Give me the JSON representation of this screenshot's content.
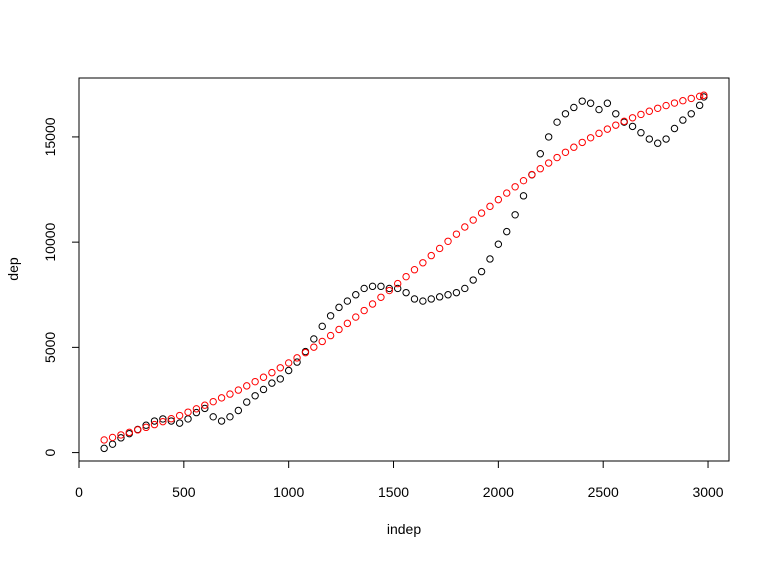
{
  "chart_data": {
    "type": "scatter",
    "title": "",
    "xlabel": "indep",
    "ylabel": "dep",
    "xlim": [
      0,
      3100
    ],
    "ylim": [
      -400,
      17800
    ],
    "x_ticks": [
      0,
      500,
      1000,
      1500,
      2000,
      2500,
      3000
    ],
    "y_ticks": [
      0,
      5000,
      10000,
      15000
    ],
    "grid": false,
    "legend": "none",
    "series": [
      {
        "color": "#000000",
        "marker": "open-circle",
        "x": [
          120,
          160,
          200,
          240,
          280,
          320,
          360,
          400,
          440,
          480,
          520,
          560,
          600,
          640,
          680,
          720,
          760,
          800,
          840,
          880,
          920,
          960,
          1000,
          1040,
          1080,
          1120,
          1160,
          1200,
          1240,
          1280,
          1320,
          1360,
          1400,
          1440,
          1480,
          1520,
          1560,
          1600,
          1640,
          1680,
          1720,
          1760,
          1800,
          1840,
          1880,
          1920,
          1960,
          2000,
          2040,
          2080,
          2120,
          2160,
          2200,
          2240,
          2280,
          2320,
          2360,
          2400,
          2440,
          2480,
          2520,
          2560,
          2600,
          2640,
          2680,
          2720,
          2760,
          2800,
          2840,
          2880,
          2920,
          2960,
          2980
        ],
        "y": [
          200,
          400,
          700,
          900,
          1100,
          1300,
          1500,
          1600,
          1500,
          1400,
          1600,
          1900,
          2100,
          1700,
          1500,
          1700,
          2000,
          2400,
          2700,
          3000,
          3300,
          3500,
          3900,
          4300,
          4800,
          5400,
          6000,
          6500,
          6900,
          7200,
          7500,
          7800,
          7900,
          7900,
          7800,
          7800,
          7600,
          7300,
          7200,
          7300,
          7400,
          7500,
          7600,
          7800,
          8200,
          8600,
          9200,
          9900,
          10500,
          11300,
          12200,
          13200,
          14200,
          15000,
          15700,
          16100,
          16400,
          16700,
          16600,
          16300,
          16600,
          16100,
          15700,
          15500,
          15200,
          14900,
          14700,
          14900,
          15400,
          15800,
          16100,
          16500,
          16900
        ]
      },
      {
        "color": "#ff0000",
        "marker": "open-circle",
        "x": [
          120,
          160,
          200,
          240,
          280,
          320,
          360,
          400,
          440,
          480,
          520,
          560,
          600,
          640,
          680,
          720,
          760,
          800,
          840,
          880,
          920,
          960,
          1000,
          1040,
          1080,
          1120,
          1160,
          1200,
          1240,
          1280,
          1320,
          1360,
          1400,
          1440,
          1480,
          1520,
          1560,
          1600,
          1640,
          1680,
          1720,
          1760,
          1800,
          1840,
          1880,
          1920,
          1960,
          2000,
          2040,
          2080,
          2120,
          2160,
          2200,
          2240,
          2280,
          2320,
          2360,
          2400,
          2440,
          2480,
          2520,
          2560,
          2600,
          2640,
          2680,
          2720,
          2760,
          2800,
          2840,
          2880,
          2920,
          2960,
          2980
        ],
        "y": [
          600,
          720,
          840,
          960,
          1080,
          1200,
          1330,
          1470,
          1610,
          1760,
          1920,
          2080,
          2250,
          2420,
          2600,
          2780,
          2970,
          3170,
          3370,
          3580,
          3800,
          4030,
          4260,
          4500,
          4750,
          5010,
          5280,
          5560,
          5850,
          6140,
          6440,
          6750,
          7060,
          7380,
          7700,
          8030,
          8360,
          8690,
          9020,
          9360,
          9700,
          10040,
          10380,
          10720,
          11050,
          11380,
          11700,
          12020,
          12330,
          12630,
          12920,
          13210,
          13490,
          13760,
          14020,
          14270,
          14510,
          14740,
          14960,
          15170,
          15370,
          15560,
          15740,
          15910,
          16070,
          16220,
          16360,
          16490,
          16610,
          16720,
          16830,
          16930,
          16980
        ]
      }
    ]
  }
}
